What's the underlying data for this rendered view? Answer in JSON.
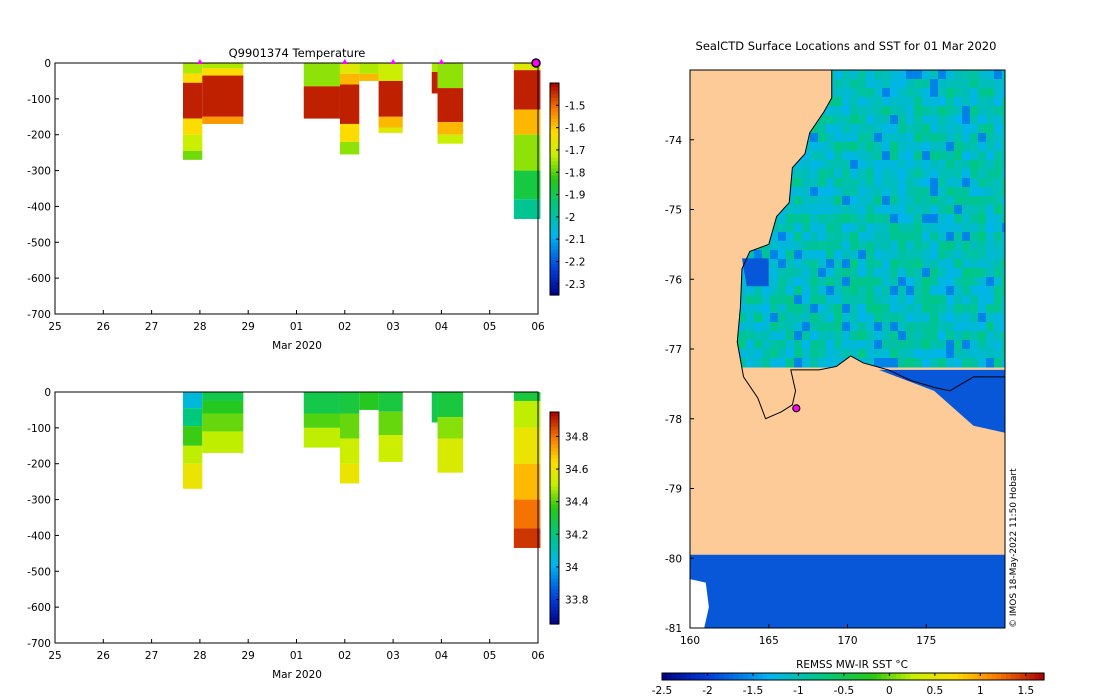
{
  "chart_data": [
    {
      "type": "heatmap",
      "panel": "temperature-profile",
      "title": "Q9901374  Temperature",
      "xlabel": "Mar 2020",
      "ylabel": "",
      "x_ticks": [
        "25",
        "26",
        "27",
        "28",
        "29",
        "01",
        "02",
        "03",
        "04",
        "05",
        "06"
      ],
      "xlim": [
        0,
        10
      ],
      "ylim": [
        -700,
        0
      ],
      "y_ticks": [
        0,
        -100,
        -200,
        -300,
        -400,
        -500,
        -600,
        -700
      ],
      "markers": [
        3,
        6,
        7,
        8,
        10
      ],
      "colorbar": {
        "ticks": [
          -1.5,
          -1.6,
          -1.7,
          -1.8,
          -1.9,
          -2,
          -2.1,
          -2.2,
          -2.3
        ],
        "range": [
          -2.35,
          -1.4
        ]
      },
      "profiles": [
        {
          "x0": 2.65,
          "x1": 3.05,
          "depth": 270,
          "segments": [
            [
              0,
              30,
              -1.74
            ],
            [
              30,
              55,
              -1.62
            ],
            [
              55,
              155,
              -1.43
            ],
            [
              155,
              200,
              -1.62
            ],
            [
              200,
              245,
              -1.72
            ],
            [
              245,
              270,
              -1.78
            ]
          ]
        },
        {
          "x0": 3.05,
          "x1": 3.9,
          "depth": 170,
          "segments": [
            [
              0,
              15,
              -1.74
            ],
            [
              15,
              35,
              -1.62
            ],
            [
              35,
              150,
              -1.43
            ],
            [
              150,
              170,
              -1.55
            ]
          ]
        },
        {
          "x0": 5.15,
          "x1": 5.9,
          "depth": 155,
          "segments": [
            [
              0,
              65,
              -1.76
            ],
            [
              65,
              155,
              -1.43
            ]
          ]
        },
        {
          "x0": 5.9,
          "x1": 6.3,
          "depth": 255,
          "segments": [
            [
              0,
              30,
              -1.68
            ],
            [
              30,
              60,
              -1.58
            ],
            [
              60,
              170,
              -1.43
            ],
            [
              170,
              220,
              -1.62
            ],
            [
              220,
              255,
              -1.76
            ]
          ]
        },
        {
          "x0": 6.3,
          "x1": 6.7,
          "depth": 50,
          "segments": [
            [
              0,
              30,
              -1.74
            ],
            [
              30,
              50,
              -1.58
            ]
          ]
        },
        {
          "x0": 6.7,
          "x1": 7.2,
          "depth": 195,
          "segments": [
            [
              0,
              50,
              -1.72
            ],
            [
              50,
              150,
              -1.43
            ],
            [
              150,
              180,
              -1.58
            ],
            [
              180,
              195,
              -1.68
            ]
          ]
        },
        {
          "x0": 7.8,
          "x1": 7.92,
          "depth": 85,
          "segments": [
            [
              0,
              25,
              -1.74
            ],
            [
              25,
              85,
              -1.43
            ]
          ]
        },
        {
          "x0": 7.92,
          "x1": 8.45,
          "depth": 225,
          "segments": [
            [
              0,
              70,
              -1.76
            ],
            [
              70,
              165,
              -1.43
            ],
            [
              165,
              200,
              -1.58
            ],
            [
              200,
              225,
              -1.72
            ]
          ]
        },
        {
          "x0": 9.5,
          "x1": 10.05,
          "depth": 435,
          "segments": [
            [
              0,
              20,
              -1.68
            ],
            [
              20,
              130,
              -1.43
            ],
            [
              130,
              200,
              -1.58
            ],
            [
              200,
              300,
              -1.76
            ],
            [
              300,
              380,
              -1.88
            ],
            [
              380,
              435,
              -1.97
            ]
          ]
        }
      ]
    },
    {
      "type": "heatmap",
      "panel": "salinity-profile",
      "title": "",
      "xlabel": "Mar 2020",
      "ylabel": "",
      "x_ticks": [
        "25",
        "26",
        "27",
        "28",
        "29",
        "01",
        "02",
        "03",
        "04",
        "05",
        "06"
      ],
      "xlim": [
        0,
        10
      ],
      "ylim": [
        -700,
        0
      ],
      "y_ticks": [
        0,
        -100,
        -200,
        -300,
        -400,
        -500,
        -600,
        -700
      ],
      "colorbar": {
        "ticks": [
          34.8,
          34.6,
          34.4,
          34.2,
          34,
          33.8
        ],
        "range": [
          33.65,
          34.95
        ]
      },
      "profiles": [
        {
          "x0": 2.65,
          "x1": 3.05,
          "depth": 270,
          "segments": [
            [
              0,
              45,
              34.05
            ],
            [
              45,
              95,
              34.2
            ],
            [
              95,
              150,
              34.38
            ],
            [
              150,
              200,
              34.5
            ],
            [
              200,
              270,
              34.6
            ]
          ]
        },
        {
          "x0": 3.05,
          "x1": 3.9,
          "depth": 170,
          "segments": [
            [
              0,
              25,
              34.28
            ],
            [
              25,
              60,
              34.35
            ],
            [
              60,
              110,
              34.42
            ],
            [
              110,
              170,
              34.5
            ]
          ]
        },
        {
          "x0": 5.15,
          "x1": 5.9,
          "depth": 155,
          "segments": [
            [
              0,
              60,
              34.28
            ],
            [
              60,
              100,
              34.4
            ],
            [
              100,
              155,
              34.5
            ]
          ]
        },
        {
          "x0": 5.9,
          "x1": 6.3,
          "depth": 255,
          "segments": [
            [
              0,
              60,
              34.3
            ],
            [
              60,
              130,
              34.42
            ],
            [
              130,
              200,
              34.52
            ],
            [
              200,
              255,
              34.6
            ]
          ]
        },
        {
          "x0": 6.3,
          "x1": 6.7,
          "depth": 50,
          "segments": [
            [
              0,
              50,
              34.35
            ]
          ]
        },
        {
          "x0": 6.7,
          "x1": 7.2,
          "depth": 195,
          "segments": [
            [
              0,
              55,
              34.3
            ],
            [
              55,
              120,
              34.42
            ],
            [
              120,
              195,
              34.52
            ]
          ]
        },
        {
          "x0": 7.8,
          "x1": 7.92,
          "depth": 85,
          "segments": [
            [
              0,
              85,
              34.28
            ]
          ]
        },
        {
          "x0": 7.92,
          "x1": 8.45,
          "depth": 225,
          "segments": [
            [
              0,
              70,
              34.3
            ],
            [
              70,
              130,
              34.45
            ],
            [
              130,
              225,
              34.55
            ]
          ]
        },
        {
          "x0": 9.5,
          "x1": 10.05,
          "depth": 435,
          "segments": [
            [
              0,
              25,
              34.3
            ],
            [
              25,
              100,
              34.5
            ],
            [
              100,
              200,
              34.6
            ],
            [
              200,
              300,
              34.7
            ],
            [
              300,
              380,
              34.8
            ],
            [
              380,
              435,
              34.88
            ]
          ]
        }
      ]
    },
    {
      "type": "heatmap",
      "panel": "sst-map",
      "title": "SealCTD Surface Locations and SST for 01 Mar 2020",
      "xlabel": "REMSS MW-IR SST °C",
      "xlim": [
        160,
        180
      ],
      "ylim": [
        -81,
        -73
      ],
      "x_ticks": [
        160,
        165,
        170,
        175
      ],
      "y_ticks": [
        -74,
        -75,
        -76,
        -77,
        -78,
        -79,
        -80,
        -81
      ],
      "colorbar": {
        "ticks": [
          -2.5,
          -2,
          -1.5,
          -1,
          -0.5,
          0,
          0.5,
          1,
          1.5
        ],
        "range": [
          -2.5,
          1.7
        ]
      },
      "sst_mean": -1.0,
      "land_color": "#fdcb97",
      "ice_color": "#0757d8",
      "ice_shelf_lat": -79.95,
      "coast_lonlat": [
        [
          169.0,
          -73.0
        ],
        [
          169.0,
          -73.4
        ],
        [
          168.5,
          -73.6
        ],
        [
          167.6,
          -73.9
        ],
        [
          167.3,
          -74.2
        ],
        [
          166.5,
          -74.4
        ],
        [
          166.3,
          -74.9
        ],
        [
          165.5,
          -75.1
        ],
        [
          165.0,
          -75.5
        ],
        [
          163.8,
          -75.6
        ],
        [
          163.3,
          -75.85
        ],
        [
          163.2,
          -76.4
        ],
        [
          163.0,
          -76.9
        ],
        [
          163.4,
          -77.4
        ],
        [
          164.3,
          -77.7
        ],
        [
          164.8,
          -78.0
        ],
        [
          165.8,
          -77.9
        ],
        [
          166.5,
          -77.8
        ],
        [
          166.7,
          -77.6
        ],
        [
          166.4,
          -77.3
        ],
        [
          167.3,
          -77.3
        ],
        [
          168.2,
          -77.3
        ],
        [
          169.3,
          -77.25
        ],
        [
          170.2,
          -77.1
        ],
        [
          171.0,
          -77.2
        ],
        [
          172.6,
          -77.3
        ],
        [
          174.0,
          -77.45
        ],
        [
          175.5,
          -77.55
        ],
        [
          176.5,
          -77.6
        ],
        [
          178.0,
          -77.4
        ],
        [
          180.0,
          -77.4
        ]
      ],
      "location_lonlat": [
        166.75,
        -77.85
      ]
    }
  ],
  "credit": "© IMOS 18-May-2022 11:50 Hobart",
  "colors": {
    "axis": "#000000",
    "marker": "#ff00ff",
    "background": "#ffffff"
  }
}
